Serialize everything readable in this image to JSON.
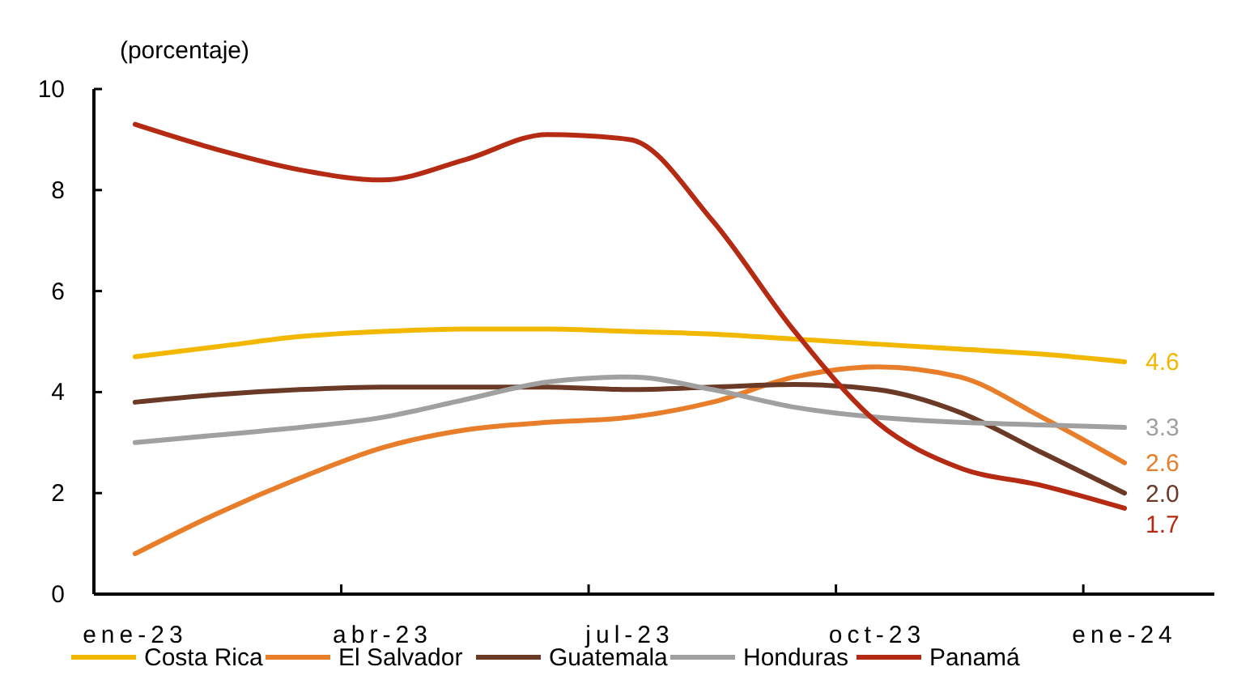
{
  "chart_data": {
    "type": "line",
    "ylabel": "(porcentaje)",
    "categories": [
      "ene-23",
      null,
      null,
      "abr-23",
      null,
      null,
      "jul-23",
      null,
      null,
      "oct-23",
      null,
      null,
      "ene-24"
    ],
    "ylim": [
      0,
      10
    ],
    "yticks": [
      0,
      2,
      4,
      6,
      8,
      10
    ],
    "grid": false,
    "legend": "bottom",
    "marker": "none",
    "line_style": "solid",
    "series": [
      {
        "name": "Costa Rica",
        "color": "#f2b800",
        "values": [
          4.7,
          4.9,
          5.1,
          5.2,
          5.25,
          5.25,
          5.2,
          5.15,
          5.05,
          4.95,
          4.85,
          4.75,
          4.6
        ],
        "value_labels": [
          null,
          null,
          null,
          null,
          null,
          null,
          null,
          null,
          null,
          null,
          null,
          null,
          "4.6"
        ]
      },
      {
        "name": "El Salvador",
        "color": "#e87d2a",
        "values": [
          0.8,
          1.6,
          2.3,
          2.9,
          3.25,
          3.4,
          3.5,
          3.8,
          4.3,
          4.5,
          4.3,
          3.5,
          2.6
        ],
        "value_labels": [
          null,
          null,
          null,
          null,
          null,
          null,
          null,
          null,
          null,
          null,
          null,
          null,
          "2.6"
        ]
      },
      {
        "name": "Guatemala",
        "color": "#6b3a26",
        "values": [
          3.8,
          3.95,
          4.05,
          4.1,
          4.1,
          4.1,
          4.05,
          4.1,
          4.15,
          4.05,
          3.6,
          2.8,
          2.0
        ],
        "value_labels": [
          null,
          null,
          null,
          null,
          null,
          null,
          null,
          null,
          null,
          null,
          null,
          null,
          "2.0"
        ]
      },
      {
        "name": "Honduras",
        "color": "#a0a0a0",
        "values": [
          3.0,
          3.15,
          3.3,
          3.5,
          3.85,
          4.2,
          4.3,
          4.05,
          3.7,
          3.5,
          3.4,
          3.35,
          3.3
        ],
        "value_labels": [
          null,
          null,
          null,
          null,
          null,
          null,
          null,
          null,
          null,
          null,
          null,
          null,
          "3.3"
        ]
      },
      {
        "name": "Panamá",
        "color": "#b52a12",
        "values": [
          9.3,
          8.8,
          8.4,
          8.2,
          8.6,
          9.1,
          9.0,
          7.4,
          5.2,
          3.4,
          2.5,
          2.15,
          1.7
        ],
        "value_labels": [
          null,
          null,
          null,
          null,
          null,
          null,
          null,
          null,
          null,
          null,
          null,
          null,
          "1.7"
        ]
      }
    ]
  }
}
